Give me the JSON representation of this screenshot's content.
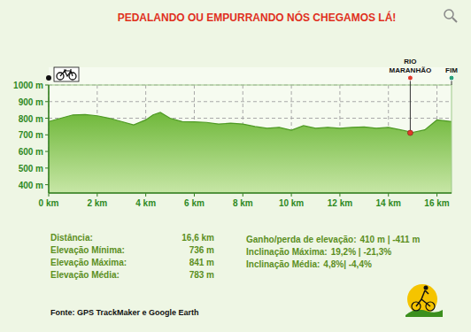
{
  "chart_data": {
    "type": "area",
    "title": "PEDALANDO OU EMPURRANDO NÓS CHEGAMOS LÁ!",
    "x": [
      0,
      0.5,
      1,
      1.5,
      2,
      2.5,
      3,
      3.5,
      4,
      4.3,
      4.6,
      5,
      5.5,
      6,
      6.5,
      7,
      7.5,
      8,
      8.5,
      9,
      9.5,
      10,
      10.5,
      11,
      11.5,
      12,
      12.5,
      13,
      13.5,
      14,
      14.5,
      15,
      15.5,
      16,
      16.3,
      16.6
    ],
    "values": [
      780,
      800,
      820,
      822,
      815,
      800,
      780,
      760,
      790,
      820,
      835,
      800,
      780,
      778,
      775,
      765,
      770,
      765,
      750,
      740,
      745,
      728,
      755,
      740,
      745,
      740,
      745,
      748,
      740,
      745,
      730,
      715,
      730,
      790,
      785,
      780
    ],
    "color": "#6fb83a",
    "xlim": [
      0,
      16.6
    ],
    "ylim": [
      350,
      1000
    ],
    "xticks": [
      {
        "value": 0,
        "label": "0 km"
      },
      {
        "value": 2,
        "label": "2 km"
      },
      {
        "value": 4,
        "label": "4 km"
      },
      {
        "value": 6,
        "label": "6 km"
      },
      {
        "value": 8,
        "label": "8 km"
      },
      {
        "value": 10,
        "label": "10 km"
      },
      {
        "value": 12,
        "label": "12 km"
      },
      {
        "value": 14,
        "label": "14 km"
      },
      {
        "value": 16,
        "label": "16 km"
      }
    ],
    "yticks": [
      {
        "value": 400,
        "label": "400 m"
      },
      {
        "value": 500,
        "label": "500 m"
      },
      {
        "value": 600,
        "label": "600 m"
      },
      {
        "value": 700,
        "label": "700 m"
      },
      {
        "value": 800,
        "label": "800 m"
      },
      {
        "value": 900,
        "label": "900 m"
      },
      {
        "value": 1000,
        "label": "1000 m"
      }
    ],
    "grid": true,
    "annotations": [
      {
        "text": "RIO MARANHÃO",
        "x": 14.9,
        "y": 712,
        "color": "#e03a2a"
      },
      {
        "text": "FIM",
        "x": 16.6,
        "color": "#2aa37a"
      }
    ],
    "stats_left": [
      {
        "label": "Distância:",
        "value": "16,6 km"
      },
      {
        "label": "Elevação Mínima:",
        "value": "736 m"
      },
      {
        "label": "Elevação Máxima:",
        "value": "841 m"
      },
      {
        "label": "Elevação Média:",
        "value": "783 m"
      }
    ],
    "stats_right": [
      {
        "label": "Ganho/perda de elevação:",
        "value": "410 m | -411 m"
      },
      {
        "label": "Inclinação Máxima:",
        "value": "19,2% | -21,3%"
      },
      {
        "label": "Inclinação Média:",
        "value": "4,8%| -4,4%"
      }
    ],
    "source": "Fonte: GPS TrackMaker e  Google Earth"
  }
}
